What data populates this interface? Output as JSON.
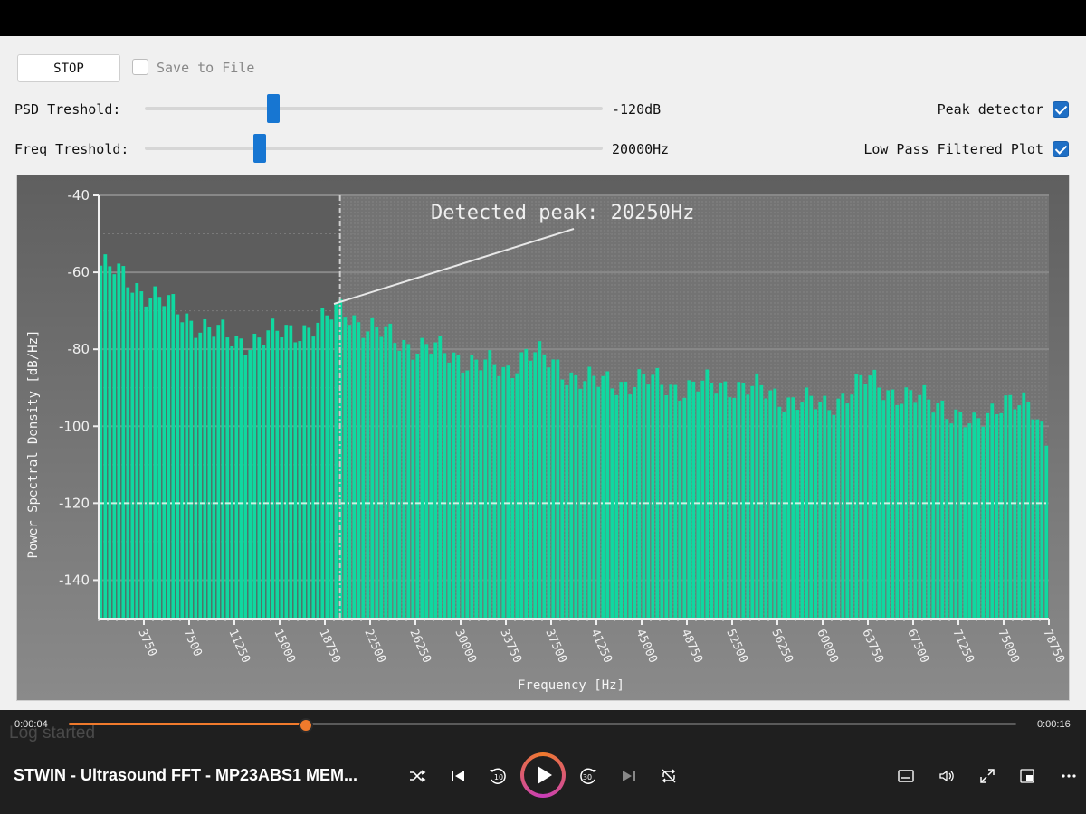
{
  "controls": {
    "stop_label": "STOP",
    "save_label": "Save to File",
    "save_checked": false,
    "psd_label": "PSD Treshold:",
    "psd_value": "-120dB",
    "psd_level": 0.28,
    "freq_label": "Freq Treshold:",
    "freq_value": "20000Hz",
    "freq_level": 0.25,
    "peak_label": "Peak detector",
    "peak_checked": true,
    "lowpass_label": "Low Pass Filtered Plot",
    "lowpass_checked": true
  },
  "chart_data": {
    "type": "bar",
    "title": "",
    "annotation": "Detected peak: 20250Hz",
    "xlabel": "Frequency [Hz]",
    "ylabel": "Power Spectral Density [dB/Hz]",
    "ylim": [
      -150,
      -40
    ],
    "xlim": [
      0,
      78750
    ],
    "y_ticks": [
      "-40",
      "-60",
      "-80",
      "-100",
      "-120",
      "-140"
    ],
    "x_ticks": [
      "3750",
      "7500",
      "11250",
      "15000",
      "18750",
      "22500",
      "26250",
      "30000",
      "33750",
      "37500",
      "41250",
      "45000",
      "48750",
      "52500",
      "56250",
      "60000",
      "63750",
      "67500",
      "71250",
      "75000",
      "78750"
    ],
    "psd_threshold_line": -120,
    "freq_threshold_line": 20000,
    "bar_color": "#10d8a0",
    "profile": [
      [
        0,
        -58
      ],
      [
        1400,
        -60
      ],
      [
        4000,
        -65
      ],
      [
        7500,
        -72
      ],
      [
        11250,
        -78
      ],
      [
        15000,
        -76
      ],
      [
        18750,
        -73
      ],
      [
        20250,
        -69
      ],
      [
        22500,
        -75
      ],
      [
        26250,
        -79
      ],
      [
        30000,
        -82
      ],
      [
        33750,
        -86
      ],
      [
        35500,
        -80
      ],
      [
        37500,
        -84
      ],
      [
        41250,
        -89
      ],
      [
        45000,
        -88
      ],
      [
        48750,
        -90
      ],
      [
        52500,
        -89
      ],
      [
        56250,
        -92
      ],
      [
        60000,
        -95
      ],
      [
        63750,
        -88
      ],
      [
        67500,
        -93
      ],
      [
        70000,
        -94
      ],
      [
        72500,
        -101
      ],
      [
        75000,
        -92
      ],
      [
        77500,
        -97
      ],
      [
        78750,
        -104
      ]
    ]
  },
  "player": {
    "elapsed": "0:00:04",
    "total": "0:00:16",
    "progress": 0.25,
    "log_text": "Log started",
    "title": "STWIN - Ultrasound FFT - MP23ABS1 MEM...",
    "rewind_label": "10",
    "forward_label": "30"
  }
}
